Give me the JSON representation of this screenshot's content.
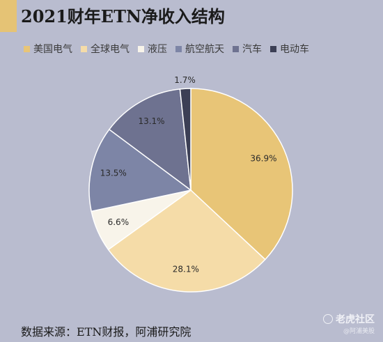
{
  "header": {
    "title": "2021财年ETN净收入结构"
  },
  "footer": {
    "source": "数据来源：ETN财报，阿浦研究院"
  },
  "watermark": {
    "main": "老虎社区",
    "sub": "@阿浦美股"
  },
  "colors": {
    "accent": "#e5c375",
    "background": "#b9bccf"
  },
  "chart_data": {
    "type": "pie",
    "title": "2021财年ETN净收入结构",
    "legend_position": "top",
    "start_angle_deg": 0,
    "direction": "clockwise",
    "slices": [
      {
        "label": "美国电气",
        "value": 36.9,
        "display": "36.9%",
        "color": "#e8c577"
      },
      {
        "label": "全球电气",
        "value": 28.1,
        "display": "28.1%",
        "color": "#f5dca8"
      },
      {
        "label": "液压",
        "value": 6.6,
        "display": "6.6%",
        "color": "#f8f4ea"
      },
      {
        "label": "航空航天",
        "value": 13.5,
        "display": "13.5%",
        "color": "#7d85a6"
      },
      {
        "label": "汽车",
        "value": 13.1,
        "display": "13.1%",
        "color": "#6e7290"
      },
      {
        "label": "电动车",
        "value": 1.7,
        "display": "1.7%",
        "color": "#3c3f55"
      }
    ]
  }
}
